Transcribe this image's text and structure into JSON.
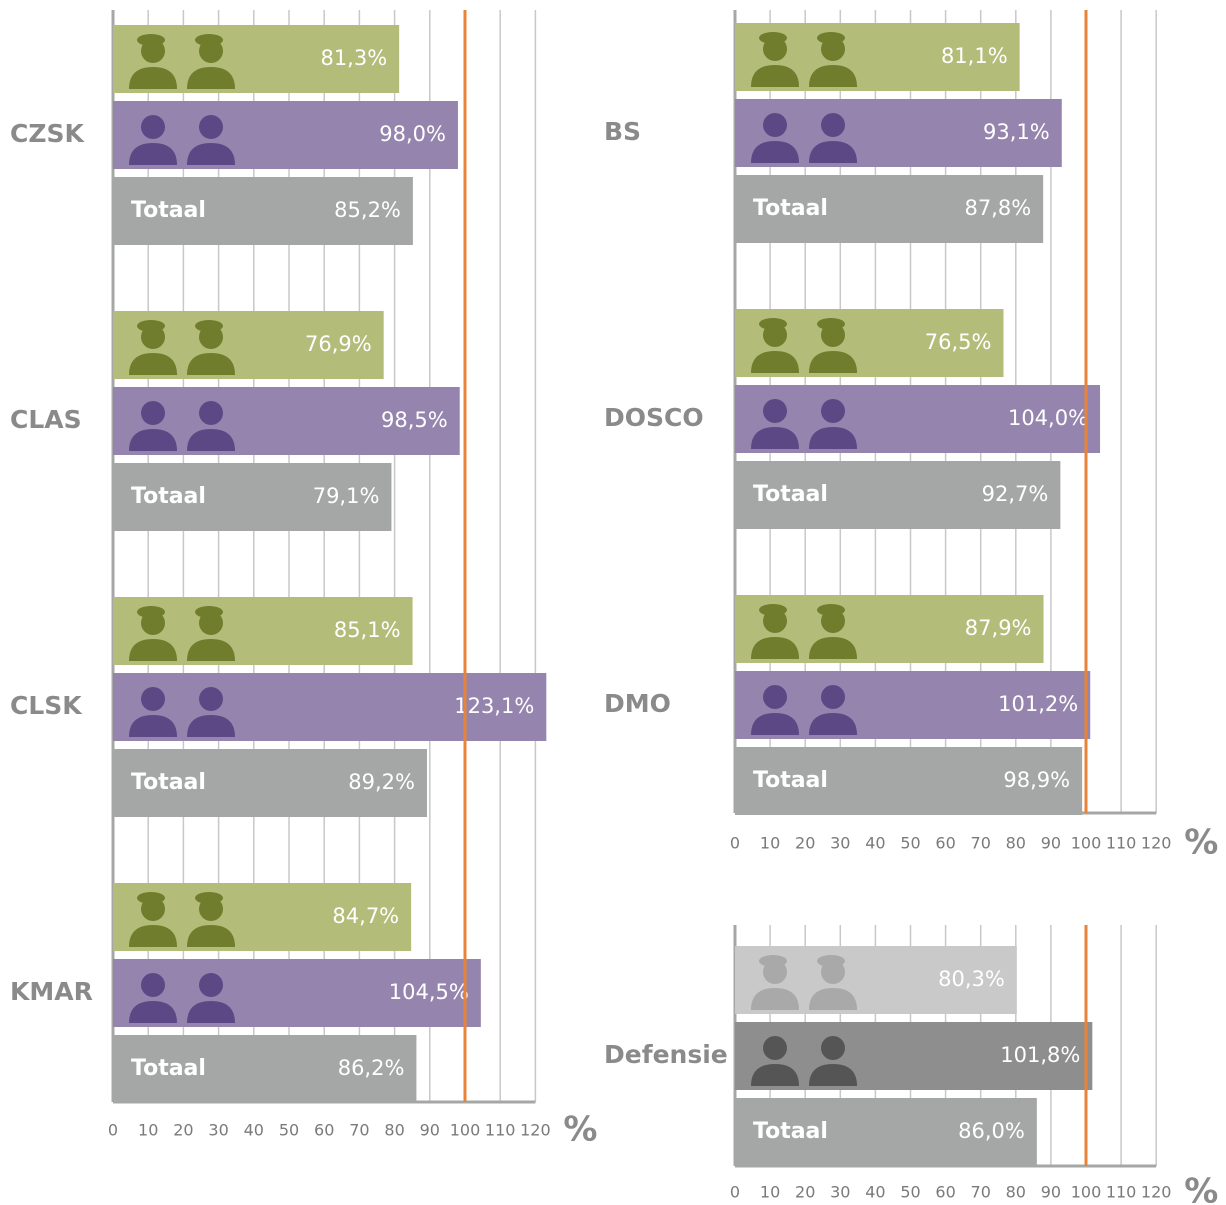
{
  "chart_data": [
    {
      "type": "bar",
      "orientation": "horizontal",
      "categories": [
        "CZSK",
        "CLAS",
        "CLSK",
        "KMAR"
      ],
      "series": [
        {
          "color": "#b3bd79",
          "icon_color": "#6f7d2c",
          "icon": "military",
          "values": [
            81.3,
            76.9,
            85.1,
            84.7
          ],
          "value_labels": [
            "81,3%",
            "76,9%",
            "85,1%",
            "84,7%"
          ]
        },
        {
          "color": "#9585ae",
          "icon_color": "#5d4886",
          "icon": "civilian",
          "values": [
            98.0,
            98.5,
            123.1,
            104.5
          ],
          "value_labels": [
            "98,0%",
            "98,5%",
            "123,1%",
            "104,5%"
          ]
        },
        {
          "name": "Totaal",
          "color": "#a5a7a6",
          "values": [
            85.2,
            79.1,
            89.2,
            86.2
          ],
          "value_labels": [
            "85,2%",
            "79,1%",
            "89,2%",
            "86,2%"
          ]
        }
      ],
      "xlim": [
        0,
        120
      ],
      "xticks": [
        0,
        10,
        20,
        30,
        40,
        50,
        60,
        70,
        80,
        90,
        100,
        110,
        120
      ],
      "xlabel": "%",
      "reference_line": 100,
      "reference_color": "#e8833a",
      "grid": true
    },
    {
      "type": "bar",
      "orientation": "horizontal",
      "categories": [
        "BS",
        "DOSCO",
        "DMO"
      ],
      "series": [
        {
          "color": "#b3bd79",
          "icon_color": "#6f7d2c",
          "icon": "military",
          "values": [
            81.1,
            76.5,
            87.9
          ],
          "value_labels": [
            "81,1%",
            "76,5%",
            "87,9%"
          ]
        },
        {
          "color": "#9585ae",
          "icon_color": "#5d4886",
          "icon": "civilian",
          "values": [
            93.1,
            104.0,
            101.2
          ],
          "value_labels": [
            "93,1%",
            "104,0%",
            "101,2%"
          ]
        },
        {
          "name": "Totaal",
          "color": "#a5a7a6",
          "values": [
            87.8,
            92.7,
            98.9
          ],
          "value_labels": [
            "87,8%",
            "92,7%",
            "98,9%"
          ]
        }
      ],
      "xlim": [
        0,
        120
      ],
      "xticks": [
        0,
        10,
        20,
        30,
        40,
        50,
        60,
        70,
        80,
        90,
        100,
        110,
        120
      ],
      "xlabel": "%",
      "reference_line": 100,
      "reference_color": "#e8833a",
      "grid": true
    },
    {
      "type": "bar",
      "orientation": "horizontal",
      "categories": [
        "Defensie"
      ],
      "series": [
        {
          "color": "#c9c9c9",
          "icon_color": "#a9a9a9",
          "icon": "military",
          "values": [
            80.3
          ],
          "value_labels": [
            "80,3%"
          ]
        },
        {
          "color": "#8e8e8e",
          "icon_color": "#555555",
          "icon": "civilian",
          "values": [
            101.8
          ],
          "value_labels": [
            "101,8%"
          ]
        },
        {
          "name": "Totaal",
          "color": "#a5a7a6",
          "values": [
            86.0
          ],
          "value_labels": [
            "86,0%"
          ]
        }
      ],
      "xlim": [
        0,
        120
      ],
      "xticks": [
        0,
        10,
        20,
        30,
        40,
        50,
        60,
        70,
        80,
        90,
        100,
        110,
        120
      ],
      "xlabel": "%",
      "reference_line": 100,
      "reference_color": "#e8833a",
      "grid": true
    }
  ]
}
